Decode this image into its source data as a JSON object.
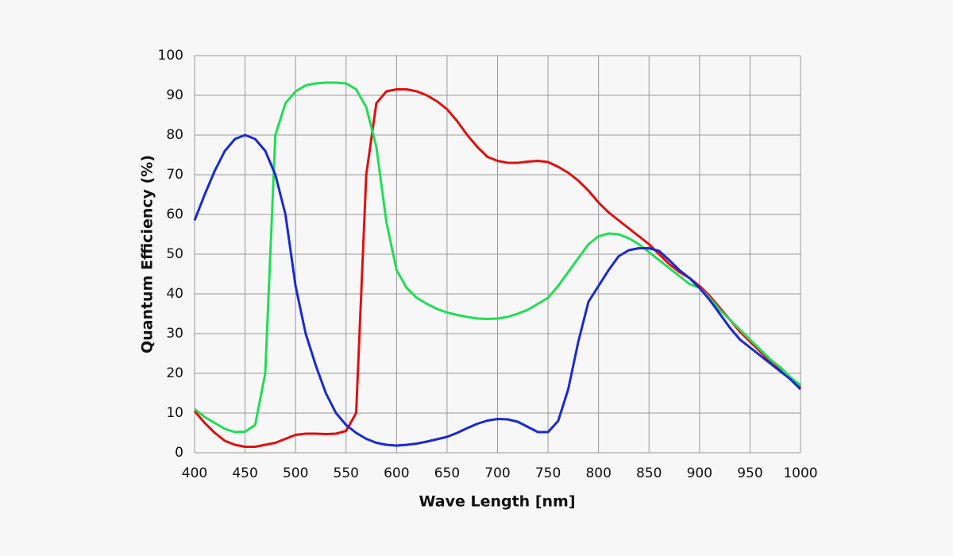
{
  "chart_data": {
    "type": "line",
    "xlabel": "Wave Length [nm]",
    "ylabel": "Quantum Efficiency (%)",
    "x": [
      400,
      410,
      420,
      430,
      440,
      450,
      460,
      470,
      480,
      490,
      500,
      510,
      520,
      530,
      540,
      550,
      560,
      570,
      580,
      590,
      600,
      610,
      620,
      630,
      640,
      650,
      660,
      670,
      680,
      690,
      700,
      710,
      720,
      730,
      740,
      750,
      760,
      770,
      780,
      790,
      800,
      810,
      820,
      830,
      840,
      850,
      860,
      870,
      880,
      890,
      900,
      910,
      920,
      930,
      940,
      950,
      960,
      970,
      980,
      990,
      1000
    ],
    "series": [
      {
        "color": "#e01010",
        "values": [
          10.5,
          7.5,
          5,
          3,
          2,
          1.5,
          1.5,
          2,
          2.5,
          3.5,
          4.5,
          4.8,
          4.8,
          4.7,
          4.8,
          5.5,
          10,
          70,
          88,
          91,
          91.5,
          91.5,
          91,
          90,
          88.5,
          86.5,
          83.5,
          80,
          77,
          74.5,
          73.5,
          73,
          73,
          73.3,
          73.5,
          73.2,
          72,
          70.5,
          68.5,
          66,
          63,
          60.5,
          58.5,
          56.5,
          54.5,
          52.5,
          50,
          47.5,
          45.5,
          44,
          42,
          39.5,
          36.5,
          33.5,
          30.5,
          28,
          25.5,
          23,
          21,
          18.5,
          16.5
        ]
      },
      {
        "color": "#22dd55",
        "values": [
          11,
          9,
          7.5,
          6,
          5.2,
          5.3,
          7,
          20,
          80,
          88,
          91,
          92.5,
          93,
          93.2,
          93.2,
          93,
          91.5,
          87,
          77,
          58,
          46,
          41.5,
          39,
          37.5,
          36.2,
          35.3,
          34.7,
          34.2,
          33.8,
          33.7,
          33.8,
          34.2,
          35,
          36,
          37.5,
          39,
          42,
          45.5,
          49,
          52.5,
          54.5,
          55.2,
          55,
          54,
          52.5,
          50.5,
          48.5,
          46.5,
          44.5,
          42.5,
          41.5,
          39,
          36,
          33.5,
          31,
          28.5,
          26,
          23.5,
          21.5,
          19,
          17
        ]
      },
      {
        "color": "#1a2ad0",
        "values": [
          58.5,
          65,
          71,
          76,
          79,
          80,
          79,
          76,
          70,
          60,
          42,
          30,
          22,
          15,
          10,
          7,
          5,
          3.5,
          2.5,
          2,
          1.8,
          2,
          2.3,
          2.8,
          3.4,
          4,
          5,
          6.2,
          7.3,
          8.1,
          8.5,
          8.4,
          7.8,
          6.5,
          5.2,
          5.2,
          8,
          16,
          28,
          38,
          42,
          46,
          49.5,
          51,
          51.5,
          51.5,
          50.8,
          48.5,
          46,
          44,
          41.5,
          38.5,
          35,
          31.5,
          28.5,
          26.5,
          24.5,
          22.5,
          20.5,
          18.5,
          16
        ]
      }
    ],
    "xlim": [
      400,
      1000
    ],
    "xticks": [
      400,
      450,
      500,
      550,
      600,
      650,
      700,
      750,
      800,
      850,
      900,
      950,
      1000
    ],
    "ylim": [
      0,
      100
    ],
    "yticks": [
      0,
      10,
      20,
      30,
      40,
      50,
      60,
      70,
      80,
      90,
      100
    ],
    "grid": true
  }
}
